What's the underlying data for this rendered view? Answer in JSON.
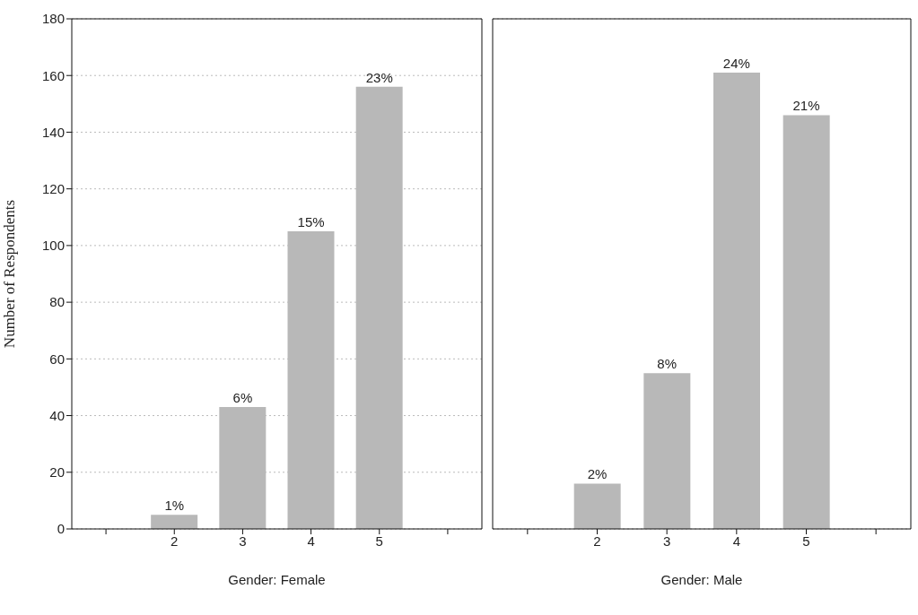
{
  "chart_data": [
    {
      "type": "bar",
      "xlabel": "Gender: Female",
      "ylabel": "Number of Respondents",
      "categories": [
        null,
        "2",
        "3",
        "4",
        "5",
        null
      ],
      "values": [
        null,
        5,
        43,
        105,
        156,
        null
      ],
      "color": "#b8b8b8",
      "ylim": [
        0,
        180
      ],
      "yticks": [
        0,
        20,
        40,
        60,
        80,
        100,
        120,
        140,
        160,
        180
      ],
      "grid": "y",
      "annotations": [
        {
          "text": "1%",
          "x": "2",
          "y": 5
        },
        {
          "text": "6%",
          "x": "3",
          "y": 43
        },
        {
          "text": "15%",
          "x": "4",
          "y": 105
        },
        {
          "text": "23%",
          "x": "5",
          "y": 156
        }
      ]
    },
    {
      "type": "bar",
      "xlabel": "Gender: Male",
      "categories": [
        null,
        "2",
        "3",
        "4",
        "5",
        null
      ],
      "values": [
        null,
        16,
        55,
        161,
        146,
        null
      ],
      "color": "#b8b8b8",
      "ylim": [
        0,
        180
      ],
      "yticks": [
        0,
        20,
        40,
        60,
        80,
        100,
        120,
        140,
        160,
        180
      ],
      "grid": "y",
      "tick_labels": "x",
      "annotations": [
        {
          "text": "2%",
          "x": "2",
          "y": 16
        },
        {
          "text": "8%",
          "x": "3",
          "y": 55
        },
        {
          "text": "24%",
          "x": "4",
          "y": 161
        },
        {
          "text": "21%",
          "x": "5",
          "y": 146
        }
      ]
    }
  ]
}
